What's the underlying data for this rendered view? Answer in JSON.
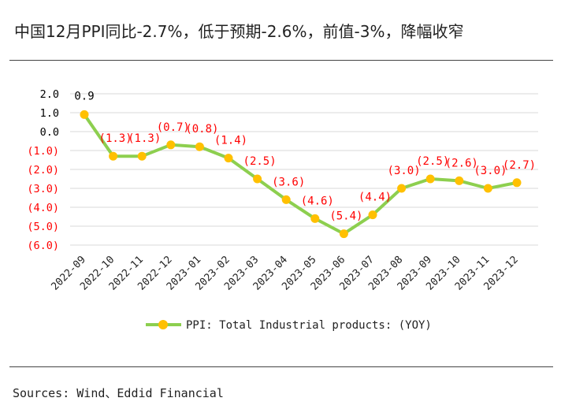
{
  "header": {
    "title": "中国12月PPI同比-2.7%，低于预期-2.6%，前值-3%，降幅收窄"
  },
  "footer": {
    "source": "Sources: Wind、Eddid Financial"
  },
  "colors": {
    "line": "#8dcf4f",
    "marker": "#ffc000",
    "negative_label": "#ff0000",
    "positive_label": "#000000",
    "grid": "#d9d9d9"
  },
  "chart_data": {
    "type": "line",
    "title": "",
    "xlabel": "",
    "ylabel": "",
    "ylim": [
      -6.0,
      2.0
    ],
    "yticks": [
      2.0,
      1.0,
      0.0,
      -1.0,
      -2.0,
      -3.0,
      -4.0,
      -5.0,
      -6.0
    ],
    "ytick_labels": [
      "2.0",
      "1.0",
      "0.0",
      "(1.0)",
      "(2.0)",
      "(3.0)",
      "(4.0)",
      "(5.0)",
      "(6.0)"
    ],
    "categories": [
      "2022-09",
      "2022-10",
      "2022-11",
      "2022-12",
      "2023-01",
      "2023-02",
      "2023-03",
      "2023-04",
      "2023-05",
      "2023-06",
      "2023-07",
      "2023-08",
      "2023-09",
      "2023-10",
      "2023-11",
      "2023-12"
    ],
    "series": [
      {
        "name": "PPI: Total Industrial products: (YOY)",
        "values": [
          0.9,
          -1.3,
          -1.3,
          -0.7,
          -0.8,
          -1.4,
          -2.5,
          -3.6,
          -4.6,
          -5.4,
          -4.4,
          -3.0,
          -2.5,
          -2.6,
          -3.0,
          -2.7
        ],
        "labels": [
          "0.9",
          "(1.3)",
          "(1.3)",
          "(0.7)",
          "(0.8)",
          "(1.4)",
          "(2.5)",
          "(3.6)",
          "(4.6)",
          "(5.4)",
          "(4.4)",
          "(3.0)",
          "(2.5)",
          "(2.6)",
          "(3.0)",
          "(2.7)"
        ]
      }
    ],
    "grid": true,
    "legend": "bottom"
  }
}
